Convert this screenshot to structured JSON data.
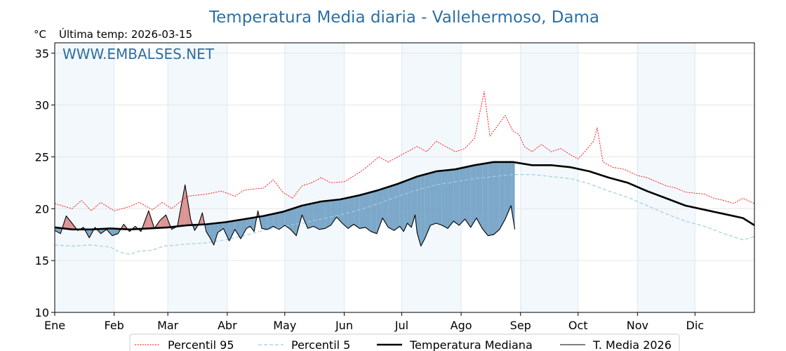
{
  "chart_data": {
    "type": "line",
    "title": "Temperatura Media diaria - Vallehermoso, Dama",
    "unit_label": "°C",
    "subtitle": "Última temp: 2026-03-15",
    "watermark": "WWW.EMBALSES.NET",
    "ylim": [
      10,
      36
    ],
    "yticks": [
      10,
      15,
      20,
      25,
      30,
      35
    ],
    "xlim": [
      1,
      366
    ],
    "months": [
      {
        "label": "Ene",
        "day": 1
      },
      {
        "label": "Feb",
        "day": 32
      },
      {
        "label": "Mar",
        "day": 60
      },
      {
        "label": "Abr",
        "day": 91
      },
      {
        "label": "May",
        "day": 121
      },
      {
        "label": "Jun",
        "day": 152
      },
      {
        "label": "Jul",
        "day": 182
      },
      {
        "label": "Ago",
        "day": 213
      },
      {
        "label": "Sep",
        "day": 244
      },
      {
        "label": "Oct",
        "day": 274
      },
      {
        "label": "Nov",
        "day": 305
      },
      {
        "label": "Dic",
        "day": 335
      }
    ],
    "shaded_months": [
      [
        1,
        32
      ],
      [
        60,
        91
      ],
      [
        121,
        152
      ],
      [
        182,
        213
      ],
      [
        244,
        274
      ],
      [
        305,
        335
      ]
    ],
    "series": [
      {
        "name": "Percentil 95",
        "style": "red-dotted",
        "color": "#ff0000",
        "points": [
          [
            1,
            20.5
          ],
          [
            10,
            20.0
          ],
          [
            15,
            20.8
          ],
          [
            20,
            19.8
          ],
          [
            25,
            20.6
          ],
          [
            32,
            19.8
          ],
          [
            40,
            20.2
          ],
          [
            45,
            20.6
          ],
          [
            52,
            19.9
          ],
          [
            57,
            20.6
          ],
          [
            62,
            20.0
          ],
          [
            70,
            21.2
          ],
          [
            80,
            21.4
          ],
          [
            88,
            21.7
          ],
          [
            95,
            21.2
          ],
          [
            100,
            21.8
          ],
          [
            110,
            22.0
          ],
          [
            115,
            22.8
          ],
          [
            120,
            21.6
          ],
          [
            125,
            21.0
          ],
          [
            130,
            22.2
          ],
          [
            135,
            22.5
          ],
          [
            140,
            23.0
          ],
          [
            145,
            22.5
          ],
          [
            152,
            22.6
          ],
          [
            160,
            23.5
          ],
          [
            165,
            24.2
          ],
          [
            170,
            25.0
          ],
          [
            175,
            24.5
          ],
          [
            182,
            25.2
          ],
          [
            190,
            26.0
          ],
          [
            195,
            25.5
          ],
          [
            200,
            26.5
          ],
          [
            205,
            26.0
          ],
          [
            210,
            25.5
          ],
          [
            215,
            25.8
          ],
          [
            220,
            26.8
          ],
          [
            225,
            31.3
          ],
          [
            228,
            27.0
          ],
          [
            232,
            28.0
          ],
          [
            236,
            29.0
          ],
          [
            240,
            27.5
          ],
          [
            243,
            27.2
          ],
          [
            246,
            26.0
          ],
          [
            250,
            25.5
          ],
          [
            255,
            26.2
          ],
          [
            260,
            25.5
          ],
          [
            265,
            25.8
          ],
          [
            270,
            25.2
          ],
          [
            274,
            24.8
          ],
          [
            278,
            25.6
          ],
          [
            282,
            26.5
          ],
          [
            284,
            27.8
          ],
          [
            287,
            24.5
          ],
          [
            292,
            24.0
          ],
          [
            298,
            23.8
          ],
          [
            305,
            23.2
          ],
          [
            310,
            23.0
          ],
          [
            315,
            22.6
          ],
          [
            320,
            22.2
          ],
          [
            325,
            22.0
          ],
          [
            330,
            21.6
          ],
          [
            335,
            21.5
          ],
          [
            340,
            21.4
          ],
          [
            345,
            21.0
          ],
          [
            350,
            20.8
          ],
          [
            355,
            20.5
          ],
          [
            360,
            21.0
          ],
          [
            366,
            20.5
          ]
        ]
      },
      {
        "name": "Percentil 5",
        "style": "lightblue-dashed",
        "color": "#9ecfe0",
        "points": [
          [
            1,
            16.5
          ],
          [
            10,
            16.4
          ],
          [
            20,
            16.5
          ],
          [
            30,
            16.3
          ],
          [
            35,
            15.8
          ],
          [
            40,
            15.6
          ],
          [
            45,
            15.9
          ],
          [
            52,
            16.0
          ],
          [
            58,
            16.4
          ],
          [
            65,
            16.5
          ],
          [
            70,
            16.6
          ],
          [
            80,
            16.7
          ],
          [
            90,
            17.0
          ],
          [
            100,
            17.4
          ],
          [
            110,
            17.9
          ],
          [
            120,
            18.3
          ],
          [
            130,
            18.6
          ],
          [
            140,
            19.0
          ],
          [
            150,
            19.4
          ],
          [
            160,
            19.9
          ],
          [
            170,
            20.5
          ],
          [
            180,
            21.2
          ],
          [
            190,
            21.8
          ],
          [
            200,
            22.3
          ],
          [
            210,
            22.6
          ],
          [
            220,
            22.9
          ],
          [
            230,
            23.1
          ],
          [
            240,
            23.3
          ],
          [
            250,
            23.3
          ],
          [
            260,
            23.1
          ],
          [
            270,
            22.9
          ],
          [
            280,
            22.4
          ],
          [
            290,
            21.7
          ],
          [
            300,
            21.1
          ],
          [
            310,
            20.3
          ],
          [
            320,
            19.5
          ],
          [
            330,
            18.8
          ],
          [
            340,
            18.3
          ],
          [
            350,
            17.6
          ],
          [
            360,
            17.0
          ],
          [
            366,
            17.3
          ]
        ]
      },
      {
        "name": "Temperatura Mediana",
        "style": "black-thick",
        "color": "#000000",
        "points": [
          [
            1,
            18.2
          ],
          [
            10,
            18.0
          ],
          [
            20,
            18.0
          ],
          [
            30,
            18.1
          ],
          [
            40,
            18.0
          ],
          [
            50,
            18.1
          ],
          [
            60,
            18.2
          ],
          [
            70,
            18.4
          ],
          [
            80,
            18.5
          ],
          [
            90,
            18.7
          ],
          [
            100,
            19.0
          ],
          [
            110,
            19.3
          ],
          [
            120,
            19.7
          ],
          [
            130,
            20.3
          ],
          [
            140,
            20.7
          ],
          [
            150,
            20.9
          ],
          [
            160,
            21.3
          ],
          [
            170,
            21.8
          ],
          [
            180,
            22.4
          ],
          [
            190,
            23.1
          ],
          [
            200,
            23.6
          ],
          [
            210,
            23.8
          ],
          [
            220,
            24.2
          ],
          [
            230,
            24.5
          ],
          [
            240,
            24.5
          ],
          [
            250,
            24.2
          ],
          [
            260,
            24.2
          ],
          [
            270,
            24.0
          ],
          [
            280,
            23.6
          ],
          [
            290,
            23.0
          ],
          [
            300,
            22.5
          ],
          [
            310,
            21.7
          ],
          [
            320,
            21.0
          ],
          [
            330,
            20.3
          ],
          [
            340,
            19.9
          ],
          [
            350,
            19.5
          ],
          [
            360,
            19.1
          ],
          [
            366,
            18.4
          ]
        ]
      },
      {
        "name": "T. Media 2026",
        "style": "black-thin",
        "color": "#000000",
        "points": [
          [
            1,
            17.9
          ],
          [
            4,
            17.6
          ],
          [
            7,
            19.3
          ],
          [
            10,
            18.6
          ],
          [
            13,
            17.9
          ],
          [
            16,
            18.2
          ],
          [
            19,
            17.2
          ],
          [
            22,
            18.2
          ],
          [
            25,
            17.6
          ],
          [
            28,
            18.0
          ],
          [
            31,
            17.4
          ],
          [
            34,
            17.6
          ],
          [
            37,
            18.5
          ],
          [
            40,
            17.8
          ],
          [
            43,
            18.3
          ],
          [
            46,
            17.8
          ],
          [
            50,
            19.8
          ],
          [
            53,
            18.1
          ],
          [
            56,
            18.9
          ],
          [
            59,
            19.4
          ],
          [
            62,
            18.0
          ],
          [
            65,
            18.3
          ],
          [
            69,
            22.3
          ],
          [
            72,
            18.9
          ],
          [
            74,
            17.9
          ],
          [
            76,
            18.5
          ],
          [
            78,
            19.6
          ],
          [
            80,
            17.8
          ],
          [
            82,
            17.2
          ],
          [
            84,
            16.5
          ],
          [
            86,
            17.7
          ],
          [
            89,
            18.1
          ],
          [
            92,
            16.9
          ],
          [
            95,
            18.0
          ],
          [
            98,
            17.1
          ],
          [
            101,
            18.1
          ],
          [
            103,
            18.3
          ],
          [
            105,
            17.8
          ],
          [
            107,
            19.8
          ],
          [
            109,
            18.1
          ],
          [
            112,
            18.0
          ],
          [
            115,
            18.3
          ],
          [
            118,
            18.0
          ],
          [
            121,
            18.4
          ],
          [
            124,
            18.0
          ],
          [
            127,
            17.4
          ],
          [
            130,
            19.4
          ],
          [
            133,
            18.1
          ],
          [
            136,
            18.3
          ],
          [
            139,
            18.0
          ],
          [
            142,
            18.1
          ],
          [
            145,
            18.4
          ],
          [
            148,
            19.2
          ],
          [
            151,
            18.6
          ],
          [
            154,
            18.1
          ],
          [
            157,
            18.5
          ],
          [
            160,
            18.1
          ],
          [
            163,
            18.2
          ],
          [
            166,
            17.8
          ],
          [
            169,
            17.6
          ],
          [
            172,
            19.1
          ],
          [
            175,
            18.2
          ],
          [
            178,
            17.9
          ],
          [
            181,
            18.3
          ],
          [
            183,
            17.8
          ],
          [
            185,
            18.6
          ],
          [
            187,
            18.2
          ],
          [
            189,
            19.4
          ],
          [
            190,
            17.7
          ],
          [
            192,
            16.4
          ],
          [
            194,
            17.1
          ],
          [
            197,
            18.4
          ],
          [
            200,
            18.6
          ],
          [
            203,
            18.4
          ],
          [
            206,
            18.1
          ],
          [
            209,
            18.8
          ],
          [
            212,
            18.4
          ],
          [
            215,
            19.0
          ],
          [
            218,
            18.2
          ],
          [
            221,
            19.1
          ],
          [
            224,
            18.1
          ],
          [
            227,
            17.4
          ],
          [
            230,
            17.5
          ],
          [
            233,
            18.0
          ],
          [
            236,
            19.0
          ],
          [
            239,
            20.3
          ],
          [
            241,
            18.0
          ]
        ]
      }
    ],
    "legend": [
      {
        "label": "Percentil 95",
        "style": "red-dotted"
      },
      {
        "label": "Percentil 5",
        "style": "lightblue-dashed"
      },
      {
        "label": "Temperatura Mediana",
        "style": "black-thick"
      },
      {
        "label": "T. Media 2026",
        "style": "black-thin"
      }
    ],
    "legend_position": "bottom",
    "fill_above_median_color": "#d98a8a",
    "fill_below_median_color": "#6f9fc3",
    "grid": true
  }
}
